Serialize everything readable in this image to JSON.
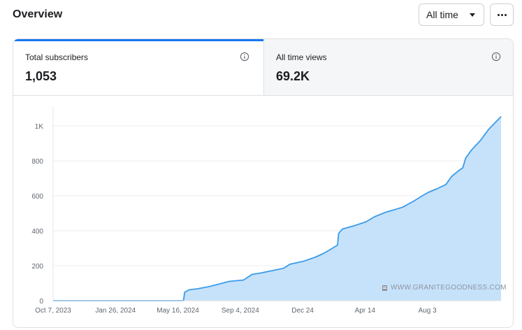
{
  "header": {
    "title": "Overview",
    "range_select": "All time",
    "more_icon": "more-horizontal-icon"
  },
  "tabs": [
    {
      "label": "Total subscribers",
      "value": "1,053",
      "active": true,
      "icon": "info-icon"
    },
    {
      "label": "All time views",
      "value": "69.2K",
      "active": false,
      "icon": "info-icon"
    }
  ],
  "watermark": "WWW.GRANITEGOODNESS.COM",
  "colors": {
    "accent": "#1877f2",
    "line": "#3b9be8",
    "area": "#c6e2fb"
  },
  "chart_data": {
    "type": "area",
    "title": "",
    "xlabel": "",
    "ylabel": "",
    "grid": true,
    "ylim": [
      0,
      1100
    ],
    "y_ticks": [
      0,
      200,
      400,
      600,
      800,
      1000
    ],
    "y_tick_labels": [
      "0",
      "200",
      "400",
      "600",
      "800",
      "1K"
    ],
    "x_tick_labels": [
      "Oct 7, 2023",
      "Jan 26, 2024",
      "May 16, 2024",
      "Sep 4, 2024",
      "Dec 24",
      "Apr 14",
      "Aug 3"
    ],
    "x_ticks": [
      "2023-10-07",
      "2024-01-26",
      "2024-05-16",
      "2024-09-04",
      "2024-12-24",
      "2025-04-14",
      "2025-08-03"
    ],
    "series": [
      {
        "points": [
          [
            "2023-10-07",
            0
          ],
          [
            "2024-02-01",
            0
          ],
          [
            "2024-05-26",
            0
          ],
          [
            "2024-05-28",
            48
          ],
          [
            "2024-06-05",
            62
          ],
          [
            "2024-06-20",
            68
          ],
          [
            "2024-07-10",
            80
          ],
          [
            "2024-08-01",
            98
          ],
          [
            "2024-08-15",
            110
          ],
          [
            "2024-09-10",
            118
          ],
          [
            "2024-09-25",
            150
          ],
          [
            "2024-10-10",
            158
          ],
          [
            "2024-11-05",
            175
          ],
          [
            "2024-11-20",
            185
          ],
          [
            "2024-12-01",
            208
          ],
          [
            "2024-12-25",
            225
          ],
          [
            "2025-01-15",
            248
          ],
          [
            "2025-01-30",
            270
          ],
          [
            "2025-02-10",
            290
          ],
          [
            "2025-02-24",
            318
          ],
          [
            "2025-02-26",
            385
          ],
          [
            "2025-03-05",
            410
          ],
          [
            "2025-03-25",
            428
          ],
          [
            "2025-04-15",
            450
          ],
          [
            "2025-05-01",
            480
          ],
          [
            "2025-05-20",
            505
          ],
          [
            "2025-06-05",
            520
          ],
          [
            "2025-06-20",
            535
          ],
          [
            "2025-07-10",
            570
          ],
          [
            "2025-07-25",
            600
          ],
          [
            "2025-08-05",
            620
          ],
          [
            "2025-08-20",
            640
          ],
          [
            "2025-09-05",
            665
          ],
          [
            "2025-09-15",
            710
          ],
          [
            "2025-09-28",
            745
          ],
          [
            "2025-10-05",
            760
          ],
          [
            "2025-10-10",
            815
          ],
          [
            "2025-10-20",
            860
          ],
          [
            "2025-11-05",
            915
          ],
          [
            "2025-11-20",
            980
          ],
          [
            "2025-12-05",
            1030
          ],
          [
            "2025-12-12",
            1053
          ]
        ]
      }
    ]
  }
}
